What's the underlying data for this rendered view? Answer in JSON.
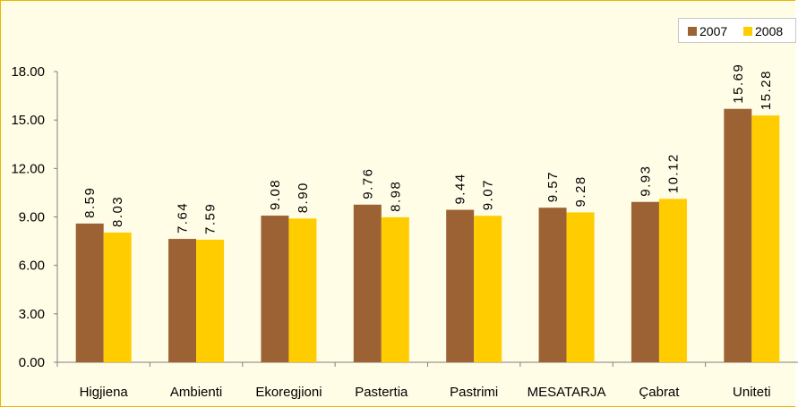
{
  "chart_data": {
    "type": "bar",
    "title": "",
    "xlabel": "",
    "ylabel": "",
    "categories": [
      "Higjiena",
      "Ambienti",
      "Ekoregjioni",
      "Pastertia",
      "Pastrimi",
      "MESATARJA",
      "Çabrat",
      "Uniteti"
    ],
    "series": [
      {
        "name": "2007",
        "values": [
          8.59,
          7.64,
          9.08,
          9.76,
          9.44,
          9.57,
          9.93,
          15.69
        ],
        "labels": [
          "8.59",
          "7.64",
          "9.08",
          "9.76",
          "9.44",
          "9.57",
          "9.93",
          "15.69"
        ],
        "color": "#9c6234"
      },
      {
        "name": "2008",
        "values": [
          8.03,
          7.59,
          8.9,
          8.98,
          9.07,
          9.28,
          10.12,
          15.28
        ],
        "labels": [
          "8.03",
          "7.59",
          "8.90",
          "8.98",
          "9.07",
          "9.28",
          "10.12",
          "15.28"
        ],
        "color": "#ffcc00"
      }
    ],
    "ylim": [
      0,
      18
    ],
    "yticks": [
      "0.00",
      "3.00",
      "6.00",
      "9.00",
      "12.00",
      "15.00",
      "18.00"
    ],
    "grid": false,
    "legend_position": "top-right",
    "background": "#fffde6",
    "border_color": "#f0b400"
  }
}
